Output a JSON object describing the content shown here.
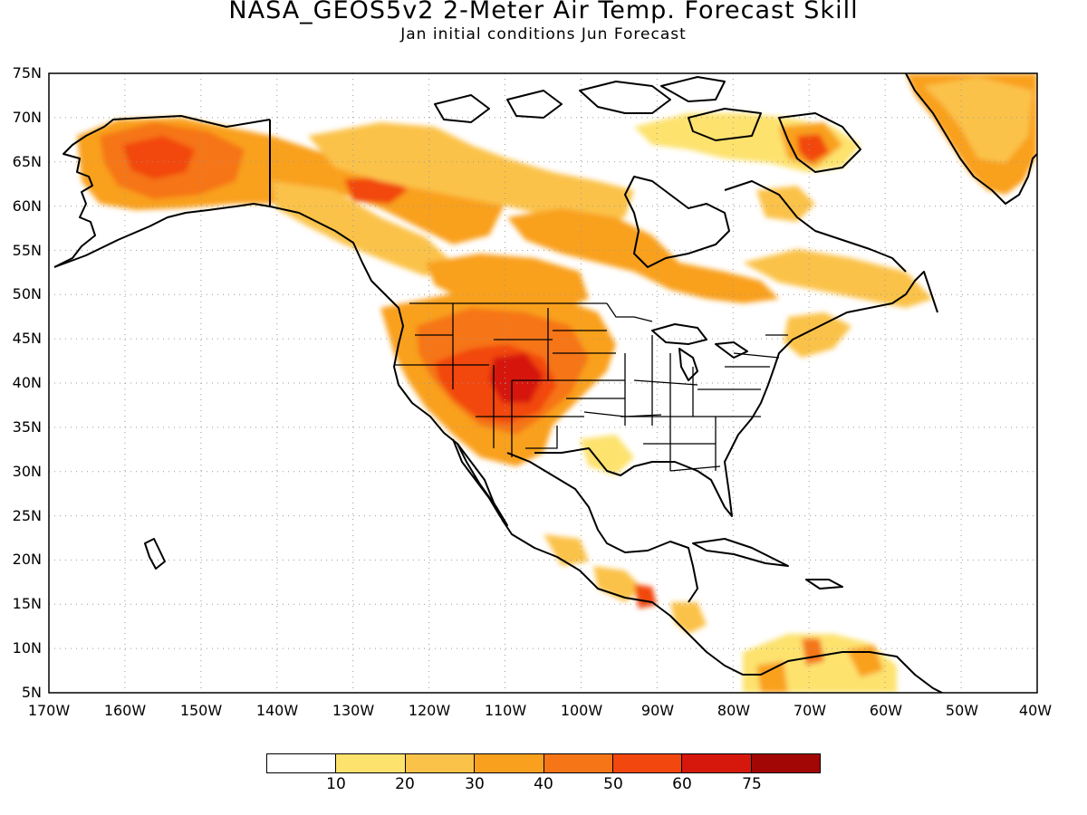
{
  "title": "NASA_GEOS5v2 2-Meter Air Temp. Forecast Skill",
  "subtitle": "Jan initial conditions  Jun Forecast",
  "lat_labels": [
    "75N",
    "70N",
    "65N",
    "60N",
    "55N",
    "50N",
    "45N",
    "40N",
    "35N",
    "30N",
    "25N",
    "20N",
    "15N",
    "10N",
    "5N"
  ],
  "lon_labels": [
    "170W",
    "160W",
    "150W",
    "140W",
    "130W",
    "120W",
    "110W",
    "100W",
    "90W",
    "80W",
    "70W",
    "60W",
    "50W",
    "40W"
  ],
  "colorbar": {
    "colors": [
      "#ffffff",
      "#fde26e",
      "#fbc24a",
      "#f9a01f",
      "#f67517",
      "#f2470f",
      "#d6180c",
      "#a20706"
    ],
    "labels": [
      "10",
      "20",
      "30",
      "40",
      "50",
      "60",
      "75"
    ]
  },
  "map": {
    "lon_range": [
      -170,
      -40
    ],
    "lat_range": [
      5,
      75
    ],
    "grid": "dotted",
    "frame_color": "#000000"
  }
}
